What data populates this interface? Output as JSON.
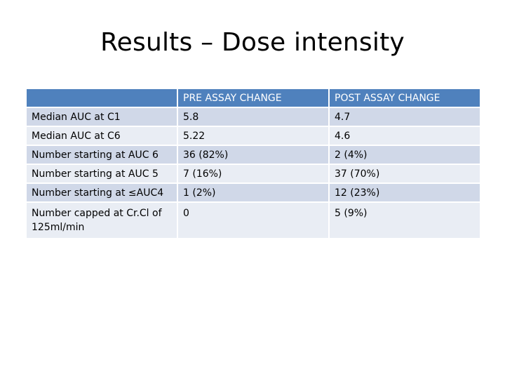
{
  "slide": {
    "title": "Results – Dose intensity"
  },
  "table": {
    "headers": [
      "",
      "PRE ASSAY CHANGE",
      "POST ASSAY CHANGE"
    ],
    "rows": [
      [
        "Median AUC at C1",
        "5.8",
        "4.7"
      ],
      [
        "Median AUC at C6",
        "5.22",
        "4.6"
      ],
      [
        "Number starting at AUC 6",
        "36 (82%)",
        "2 (4%)"
      ],
      [
        "Number starting at AUC 5",
        "7 (16%)",
        "37 (70%)"
      ],
      [
        "Number starting at ≤AUC4",
        "1 (2%)",
        "12 (23%)"
      ],
      [
        "Number capped at Cr.Cl of 125ml/min",
        "0",
        "5 (9%)"
      ]
    ]
  },
  "colors": {
    "header_background": "#4f81bd",
    "row_band_dark": "#d0d8e8",
    "row_band_light": "#e9edf4"
  }
}
